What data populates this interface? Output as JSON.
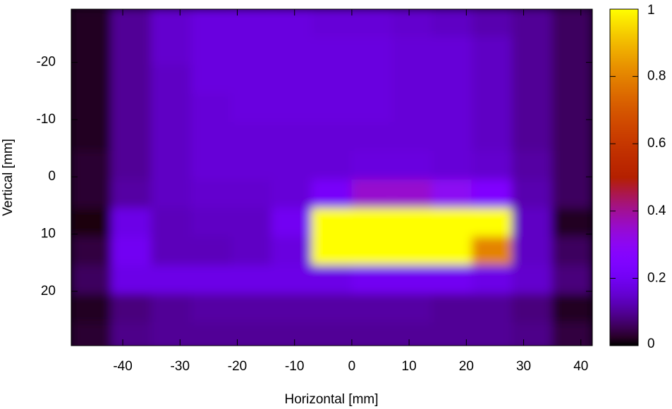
{
  "chart_data": {
    "type": "heatmap",
    "x_label": "Horizontal [mm]",
    "y_label": "Vertical [mm]",
    "xlim": [
      -49,
      42
    ],
    "ylim": [
      29.5,
      -29.3
    ],
    "xticks": [
      -40,
      -30,
      -20,
      -10,
      0,
      10,
      20,
      30,
      40
    ],
    "yticks": [
      -20,
      -10,
      0,
      10,
      20
    ],
    "colormap": "gnuplot",
    "clim": [
      0,
      1
    ],
    "cticks": [
      0,
      0.2,
      0.4,
      0.6,
      0.8,
      1
    ],
    "x": [
      -45.5,
      -38.5,
      -31.5,
      -24.5,
      -17.5,
      -10.5,
      -3.5,
      3.5,
      10.5,
      17.5,
      24.5,
      31.5,
      38.5
    ],
    "y": [
      -27,
      -22,
      -17,
      -12,
      -7,
      -2,
      3,
      8,
      13,
      18,
      23,
      28
    ],
    "z": [
      [
        0.02,
        0.1,
        0.15,
        0.17,
        0.17,
        0.17,
        0.16,
        0.16,
        0.15,
        0.14,
        0.12,
        0.1,
        0.06
      ],
      [
        0.02,
        0.1,
        0.15,
        0.17,
        0.17,
        0.17,
        0.17,
        0.17,
        0.16,
        0.16,
        0.14,
        0.1,
        0.06
      ],
      [
        0.02,
        0.1,
        0.14,
        0.17,
        0.17,
        0.17,
        0.17,
        0.17,
        0.16,
        0.16,
        0.14,
        0.1,
        0.06
      ],
      [
        0.02,
        0.1,
        0.14,
        0.16,
        0.17,
        0.17,
        0.17,
        0.17,
        0.16,
        0.16,
        0.14,
        0.1,
        0.06
      ],
      [
        0.02,
        0.1,
        0.14,
        0.16,
        0.16,
        0.16,
        0.16,
        0.16,
        0.16,
        0.16,
        0.14,
        0.1,
        0.06
      ],
      [
        0.03,
        0.1,
        0.14,
        0.16,
        0.16,
        0.16,
        0.16,
        0.17,
        0.17,
        0.16,
        0.15,
        0.11,
        0.06
      ],
      [
        0.03,
        0.11,
        0.14,
        0.15,
        0.15,
        0.16,
        0.22,
        0.35,
        0.35,
        0.3,
        0.25,
        0.12,
        0.06
      ],
      [
        0.01,
        0.18,
        0.13,
        0.14,
        0.14,
        0.2,
        1,
        1,
        1,
        1,
        1,
        0.14,
        0.02
      ],
      [
        0.04,
        0.2,
        0.13,
        0.13,
        0.14,
        0.17,
        1,
        1,
        1,
        1,
        0.8,
        0.14,
        0.06
      ],
      [
        0.06,
        0.18,
        0.18,
        0.18,
        0.18,
        0.18,
        0.18,
        0.2,
        0.2,
        0.2,
        0.18,
        0.15,
        0.08
      ],
      [
        0.02,
        0.08,
        0.1,
        0.11,
        0.11,
        0.11,
        0.11,
        0.11,
        0.11,
        0.1,
        0.1,
        0.08,
        0.02
      ],
      [
        0.03,
        0.09,
        0.1,
        0.1,
        0.1,
        0.1,
        0.1,
        0.1,
        0.1,
        0.1,
        0.1,
        0.09,
        0.04
      ]
    ]
  }
}
